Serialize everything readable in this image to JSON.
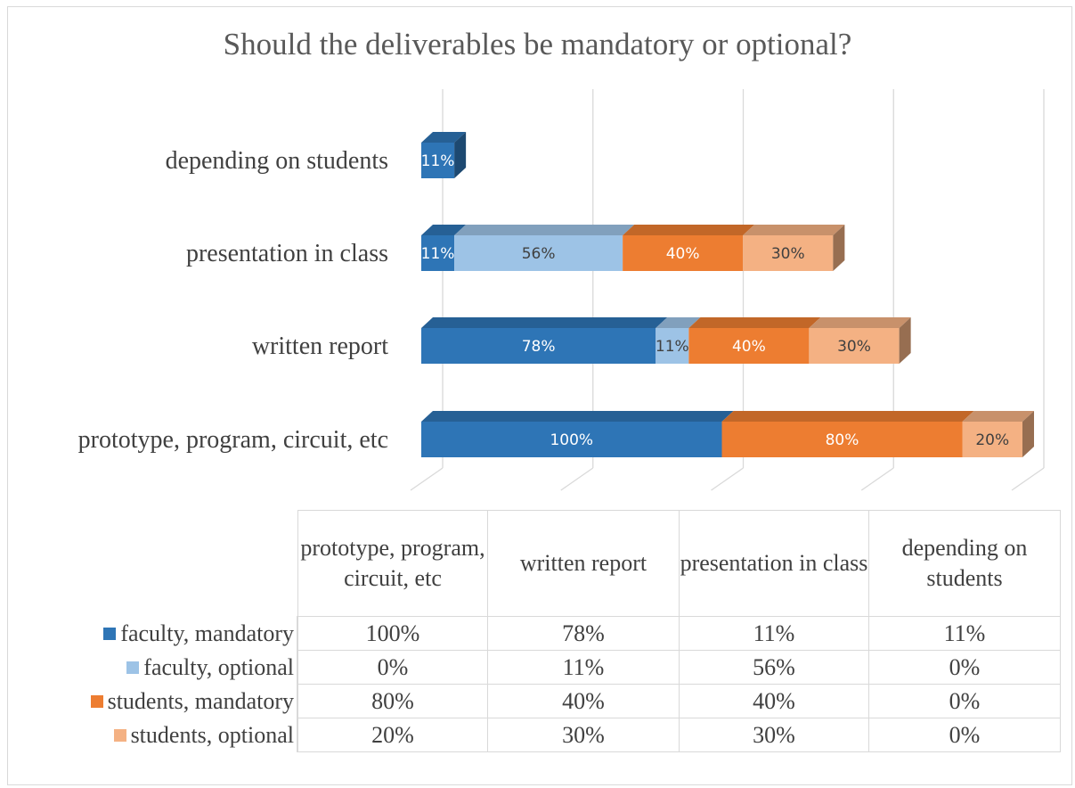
{
  "chart_data": {
    "type": "bar",
    "orientation": "horizontal",
    "stacked": true,
    "style": "3d",
    "title": "Should the deliverables be mandatory or optional?",
    "categories": [
      "prototype, program, circuit, etc",
      "written report",
      "presentation in class",
      "depending on students"
    ],
    "series": [
      {
        "name": "faculty, mandatory",
        "color": "#2e75b6",
        "values": [
          100,
          78,
          11,
          11
        ],
        "labels": [
          "100%",
          "78%",
          "11%",
          "11%"
        ]
      },
      {
        "name": "faculty, optional",
        "color": "#9dc3e6",
        "values": [
          0,
          11,
          56,
          0
        ],
        "labels": [
          "0%",
          "11%",
          "56%",
          "0%"
        ]
      },
      {
        "name": "students, mandatory",
        "color": "#ed7d31",
        "values": [
          80,
          40,
          40,
          0
        ],
        "labels": [
          "80%",
          "40%",
          "40%",
          "0%"
        ]
      },
      {
        "name": "students, optional",
        "color": "#f4b183",
        "values": [
          20,
          30,
          30,
          0
        ],
        "labels": [
          "20%",
          "30%",
          "30%",
          "0%"
        ]
      }
    ],
    "grid": true,
    "legend": "data-table",
    "data_table": true
  }
}
